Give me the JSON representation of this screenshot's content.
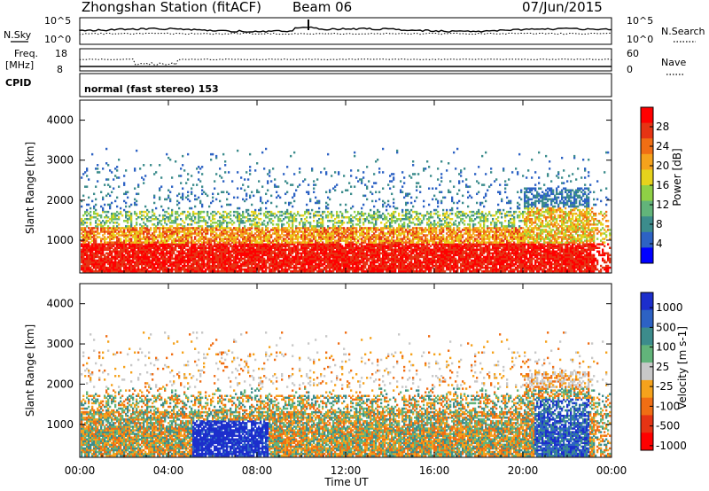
{
  "header": {
    "station_title": "Zhongshan Station (fitACF)",
    "beam": "Beam 06",
    "date": "07/Jun/2015"
  },
  "panels": {
    "nsky": {
      "label": "N.Sky",
      "ticks": [
        "10^5",
        "10^0"
      ],
      "right_ticks": [
        "10^5",
        "10^0"
      ],
      "right_label": "N.Search"
    },
    "freq": {
      "label_line1": "Freq.",
      "label_line2": "[MHz]",
      "ticks": [
        "18",
        "8"
      ],
      "right_ticks": [
        "60",
        "0"
      ],
      "right_label": "Nave"
    },
    "cpid": {
      "label": "CPID",
      "text": "normal (fast stereo) 153"
    }
  },
  "chart_data": [
    {
      "type": "heatmap",
      "name": "power",
      "ylabel": "Slant Range [km]",
      "y_ticks": [
        "1000",
        "2000",
        "3000",
        "4000"
      ],
      "ylim": [
        180,
        4500
      ],
      "x_ticks": [
        "00:00",
        "04:00",
        "08:00",
        "12:00",
        "16:00",
        "20:00",
        "00:00"
      ],
      "xlim_hours": [
        0,
        24
      ],
      "colorbar": {
        "label": "Power [dB]",
        "ticks": [
          "4",
          "8",
          "12",
          "16",
          "20",
          "24",
          "28"
        ],
        "colors": [
          "#0000ff",
          "#2d62c4",
          "#3c8c8c",
          "#62b47a",
          "#8fd046",
          "#e6d21c",
          "#f5a21c",
          "#f06e14",
          "#e63414",
          "#ff0000"
        ]
      }
    },
    {
      "type": "heatmap",
      "name": "velocity",
      "ylabel": "Slant Range [km]",
      "y_ticks": [
        "1000",
        "2000",
        "3000",
        "4000"
      ],
      "ylim": [
        180,
        4500
      ],
      "x_ticks": [
        "00:00",
        "04:00",
        "08:00",
        "12:00",
        "16:00",
        "20:00",
        "00:00"
      ],
      "xlabel": "Time UT",
      "colorbar": {
        "label": "Velocity [m s-1]",
        "ticks": [
          "1000",
          "500",
          "100",
          "25",
          "-25",
          "-100",
          "-500",
          "-1000"
        ],
        "colors": [
          "#1c2ecc",
          "#2d62c4",
          "#3c8c8c",
          "#62b47a",
          "#c8c8c8",
          "#f5a21c",
          "#f06e14",
          "#e63414",
          "#ff0000"
        ]
      }
    }
  ]
}
